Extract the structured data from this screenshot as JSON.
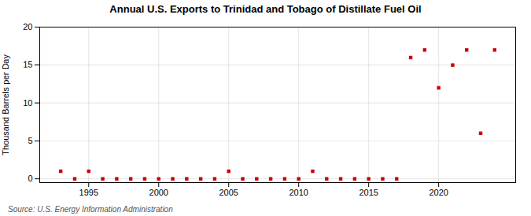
{
  "chart_data": {
    "type": "scatter",
    "title": "Annual U.S. Exports to Trinidad and Tobago of Distillate Fuel Oil",
    "ylabel": "Thousand Barrels per Day",
    "source": "Source: U.S. Energy Information Administration",
    "x": [
      1993,
      1994,
      1995,
      1996,
      1997,
      1998,
      1999,
      2000,
      2001,
      2002,
      2003,
      2004,
      2005,
      2006,
      2007,
      2008,
      2009,
      2010,
      2011,
      2012,
      2013,
      2014,
      2015,
      2016,
      2017,
      2018,
      2019,
      2020,
      2021,
      2022,
      2023,
      2024
    ],
    "values": [
      1,
      0,
      1,
      0,
      0,
      0,
      0,
      0,
      0,
      0,
      0,
      0,
      1,
      0,
      0,
      0,
      0,
      0,
      1,
      0,
      0,
      0,
      0,
      0,
      0,
      16,
      17,
      12,
      15,
      17,
      6,
      17
    ],
    "color": "#cc0000",
    "marker": "square",
    "xlim": [
      1991.5,
      2025.5
    ],
    "ylim": [
      -0.5,
      20
    ],
    "xticks": [
      1995,
      2000,
      2005,
      2010,
      2015,
      2020
    ],
    "yticks": [
      0,
      5,
      10,
      15,
      20
    ],
    "grid": true
  }
}
